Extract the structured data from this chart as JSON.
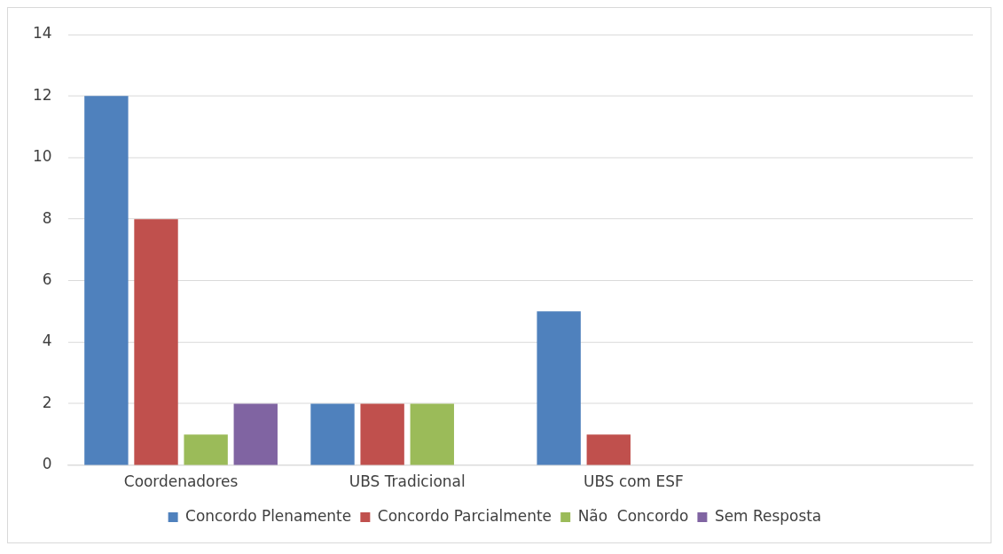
{
  "chart_data": {
    "type": "bar",
    "categories": [
      "Coordenadores",
      "UBS Tradicional",
      "UBS com ESF",
      null
    ],
    "series": [
      {
        "name": "Concordo Plenamente",
        "color": "#4f81bd",
        "values": [
          12,
          2,
          5,
          null
        ]
      },
      {
        "name": "Concordo Parcialmente",
        "color": "#c0504d",
        "values": [
          8,
          2,
          1,
          null
        ]
      },
      {
        "name": "Não  Concordo",
        "color": "#9bbb59",
        "values": [
          1,
          2,
          null,
          null
        ]
      },
      {
        "name": "Sem Resposta",
        "color": "#8064a2",
        "values": [
          2,
          null,
          null,
          null
        ]
      }
    ],
    "ylim": [
      0,
      14
    ],
    "yticks": [
      0,
      2,
      4,
      6,
      8,
      10,
      12,
      14
    ],
    "grid": "y",
    "legend": "bottom"
  }
}
